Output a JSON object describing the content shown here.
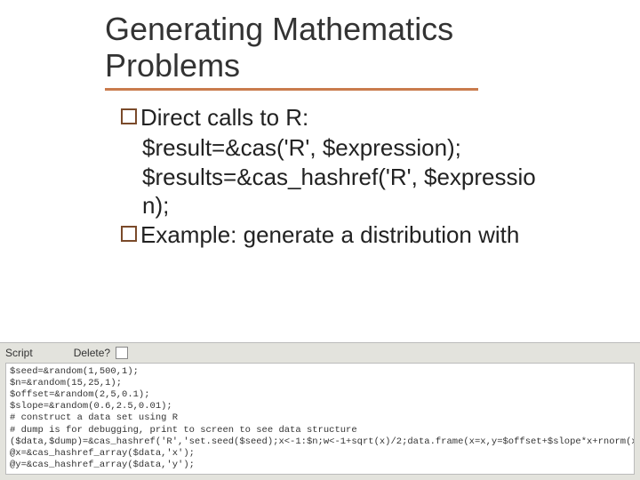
{
  "title": {
    "line1": "Generating Mathematics",
    "line2": "Problems",
    "underline_color": "#c97b4d",
    "title_fontsize": 36,
    "title_color": "#333333"
  },
  "bullets": [
    {
      "lead": "Direct calls to R:",
      "continuation": [
        "$result=&cas('R', $expression);",
        "$results=&cas_hashref('R', $expressio",
        "n);"
      ]
    },
    {
      "lead": "Example: generate a distribution with",
      "continuation": []
    }
  ],
  "body_style": {
    "bullet_marker_border_color": "#7a4a2a",
    "body_fontsize": 26,
    "body_color": "#222222"
  },
  "script_panel": {
    "label": "Script",
    "delete_label": "Delete?",
    "header_bg": "#e3e3dd",
    "code_bg": "#ffffff",
    "code_fontsize": 10.5,
    "code_lines": [
      "$seed=&random(1,500,1);",
      "$n=&random(15,25,1);",
      "$offset=&random(2,5,0.1);",
      "$slope=&random(0.6,2.5,0.01);",
      "# construct a data set using R",
      "# dump is for debugging, print to screen to see data structure",
      "($data,$dump)=&cas_hashref('R','set.seed($seed);x<-1:$n;w<-1+sqrt(x)/2;data.frame(x=x,y=$offset+$slope*x+rnorm(x)*w)');",
      "@x=&cas_hashref_array($data,'x');",
      "@y=&cas_hashref_array($data,'y');"
    ]
  }
}
